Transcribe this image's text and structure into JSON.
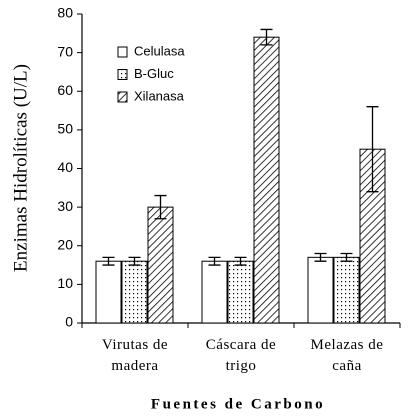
{
  "chart_data": {
    "type": "bar",
    "y_label": "Enzimas Hidrolíticas (U/L)",
    "x_label": "Fuentes de Carbono",
    "categories": [
      "Virutas de madera",
      "Cáscara de trigo",
      "Melazas de caña"
    ],
    "series": [
      {
        "name": "Celulasa",
        "color": "#ffffff",
        "pattern": "none",
        "values": [
          16,
          16,
          17
        ],
        "errors": [
          1,
          1,
          1
        ]
      },
      {
        "name": "B-Gluc",
        "color": "#ffffff",
        "pattern": "dots",
        "values": [
          16,
          16,
          17
        ],
        "errors": [
          1,
          1,
          1
        ]
      },
      {
        "name": "Xilanasa",
        "color": "#ffffff",
        "pattern": "hatch",
        "values": [
          30,
          74,
          45
        ],
        "errors": [
          3,
          2,
          11
        ]
      }
    ],
    "ylim": [
      0,
      80
    ],
    "yticks": [
      0,
      10,
      20,
      30,
      40,
      50,
      60,
      70,
      80
    ],
    "legend": "top-left",
    "grid": false
  }
}
